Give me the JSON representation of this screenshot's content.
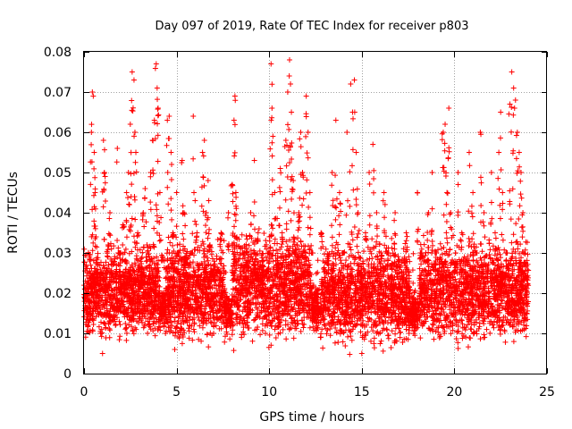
{
  "chart_data": {
    "type": "scatter",
    "title": "Day 097 of 2019, Rate Of TEC Index for receiver p803",
    "xlabel": "GPS time / hours",
    "ylabel": "ROTI / TECUs",
    "xlim": [
      0,
      25
    ],
    "ylim": [
      0,
      0.08
    ],
    "x_ticks": [
      0,
      5,
      10,
      15,
      20,
      25
    ],
    "x_tick_labels": [
      "0",
      "5",
      "10",
      "15",
      "20",
      "25"
    ],
    "y_ticks": [
      0,
      0.01,
      0.02,
      0.03,
      0.04,
      0.05,
      0.06,
      0.07,
      0.08
    ],
    "y_tick_labels": [
      "0",
      "0.01",
      "0.02",
      "0.03",
      "0.04",
      "0.05",
      "0.06",
      "0.07",
      "0.08"
    ],
    "grid": true,
    "marker": "+",
    "color": "#ff0000",
    "series": [
      {
        "name": "ROTI",
        "points": [
          [
            0.1,
            0.02
          ],
          [
            0.2,
            0.012
          ],
          [
            0.3,
            0.028
          ],
          [
            0.35,
            0.015
          ],
          [
            0.4,
            0.06
          ],
          [
            0.45,
            0.07
          ],
          [
            0.5,
            0.069
          ],
          [
            0.55,
            0.055
          ],
          [
            0.6,
            0.045
          ],
          [
            0.65,
            0.034
          ],
          [
            0.7,
            0.025
          ],
          [
            0.8,
            0.018
          ],
          [
            0.9,
            0.01
          ],
          [
            1.0,
            0.005
          ],
          [
            1.05,
            0.058
          ],
          [
            1.1,
            0.05
          ],
          [
            1.2,
            0.022
          ],
          [
            1.3,
            0.032
          ],
          [
            1.4,
            0.04
          ],
          [
            1.5,
            0.027
          ],
          [
            1.6,
            0.016
          ],
          [
            1.7,
            0.012
          ],
          [
            1.8,
            0.056
          ],
          [
            1.9,
            0.03
          ],
          [
            2.0,
            0.02
          ],
          [
            2.1,
            0.037
          ],
          [
            2.2,
            0.015
          ],
          [
            2.3,
            0.045
          ],
          [
            2.4,
            0.05
          ],
          [
            2.5,
            0.062
          ],
          [
            2.6,
            0.075
          ],
          [
            2.7,
            0.073
          ],
          [
            2.75,
            0.06
          ],
          [
            2.8,
            0.055
          ],
          [
            2.9,
            0.035
          ],
          [
            3.0,
            0.015
          ],
          [
            3.1,
            0.022
          ],
          [
            3.2,
            0.04
          ],
          [
            3.3,
            0.046
          ],
          [
            3.4,
            0.032
          ],
          [
            3.5,
            0.012
          ],
          [
            3.6,
            0.05
          ],
          [
            3.7,
            0.058
          ],
          [
            3.8,
            0.063
          ],
          [
            3.9,
            0.077
          ],
          [
            3.95,
            0.071
          ],
          [
            4.0,
            0.066
          ],
          [
            4.1,
            0.045
          ],
          [
            4.2,
            0.028
          ],
          [
            4.3,
            0.015
          ],
          [
            4.4,
            0.01
          ],
          [
            4.5,
            0.063
          ],
          [
            4.6,
            0.064
          ],
          [
            4.7,
            0.055
          ],
          [
            4.8,
            0.035
          ],
          [
            4.9,
            0.006
          ],
          [
            5.0,
            0.045
          ],
          [
            5.1,
            0.03
          ],
          [
            5.2,
            0.02
          ],
          [
            5.3,
            0.053
          ],
          [
            5.4,
            0.04
          ],
          [
            5.5,
            0.025
          ],
          [
            5.6,
            0.018
          ],
          [
            5.7,
            0.012
          ],
          [
            5.8,
            0.03
          ],
          [
            5.9,
            0.064
          ],
          [
            6.0,
            0.043
          ],
          [
            6.1,
            0.035
          ],
          [
            6.2,
            0.022
          ],
          [
            6.3,
            0.015
          ],
          [
            6.4,
            0.055
          ],
          [
            6.5,
            0.058
          ],
          [
            6.6,
            0.04
          ],
          [
            6.7,
            0.048
          ],
          [
            6.8,
            0.032
          ],
          [
            6.9,
            0.018
          ],
          [
            7.0,
            0.01
          ],
          [
            7.2,
            0.025
          ],
          [
            7.4,
            0.035
          ],
          [
            7.6,
            0.015
          ],
          [
            7.8,
            0.04
          ],
          [
            8.0,
            0.047
          ],
          [
            8.1,
            0.063
          ],
          [
            8.15,
            0.069
          ],
          [
            8.2,
            0.045
          ],
          [
            8.4,
            0.022
          ],
          [
            8.6,
            0.03
          ],
          [
            8.8,
            0.012
          ],
          [
            9.0,
            0.04
          ],
          [
            9.2,
            0.053
          ],
          [
            9.4,
            0.035
          ],
          [
            9.6,
            0.02
          ],
          [
            9.8,
            0.01
          ],
          [
            10.0,
            0.03
          ],
          [
            10.1,
            0.077
          ],
          [
            10.15,
            0.066
          ],
          [
            10.2,
            0.059
          ],
          [
            10.3,
            0.045
          ],
          [
            10.4,
            0.025
          ],
          [
            10.5,
            0.015
          ],
          [
            10.6,
            0.051
          ],
          [
            10.7,
            0.035
          ],
          [
            10.8,
            0.02
          ],
          [
            10.9,
            0.058
          ],
          [
            11.0,
            0.07
          ],
          [
            11.1,
            0.078
          ],
          [
            11.15,
            0.072
          ],
          [
            11.2,
            0.065
          ],
          [
            11.3,
            0.048
          ],
          [
            11.4,
            0.03
          ],
          [
            11.5,
            0.015
          ],
          [
            11.6,
            0.04
          ],
          [
            11.7,
            0.06
          ],
          [
            11.8,
            0.05
          ],
          [
            11.9,
            0.025
          ],
          [
            12.0,
            0.069
          ],
          [
            12.1,
            0.06
          ],
          [
            12.2,
            0.045
          ],
          [
            12.3,
            0.03
          ],
          [
            12.4,
            0.015
          ],
          [
            12.6,
            0.02
          ],
          [
            12.8,
            0.035
          ],
          [
            13.0,
            0.012
          ],
          [
            13.2,
            0.028
          ],
          [
            13.4,
            0.05
          ],
          [
            13.6,
            0.063
          ],
          [
            13.8,
            0.045
          ],
          [
            14.0,
            0.03
          ],
          [
            14.2,
            0.06
          ],
          [
            14.4,
            0.072
          ],
          [
            14.5,
            0.065
          ],
          [
            14.6,
            0.073
          ],
          [
            14.7,
            0.055
          ],
          [
            14.8,
            0.04
          ],
          [
            14.9,
            0.025
          ],
          [
            15.0,
            0.005
          ],
          [
            15.2,
            0.035
          ],
          [
            15.4,
            0.05
          ],
          [
            15.6,
            0.057
          ],
          [
            15.8,
            0.04
          ],
          [
            16.0,
            0.022
          ],
          [
            16.2,
            0.045
          ],
          [
            16.4,
            0.03
          ],
          [
            16.6,
            0.015
          ],
          [
            16.8,
            0.04
          ],
          [
            17.0,
            0.025
          ],
          [
            17.2,
            0.012
          ],
          [
            17.4,
            0.035
          ],
          [
            17.6,
            0.02
          ],
          [
            17.8,
            0.01
          ],
          [
            18.0,
            0.045
          ],
          [
            18.2,
            0.03
          ],
          [
            18.4,
            0.02
          ],
          [
            18.6,
            0.04
          ],
          [
            18.8,
            0.05
          ],
          [
            19.0,
            0.03
          ],
          [
            19.2,
            0.015
          ],
          [
            19.4,
            0.06
          ],
          [
            19.5,
            0.062
          ],
          [
            19.6,
            0.045
          ],
          [
            19.7,
            0.066
          ],
          [
            19.8,
            0.04
          ],
          [
            20.0,
            0.025
          ],
          [
            20.2,
            0.05
          ],
          [
            20.4,
            0.035
          ],
          [
            20.6,
            0.02
          ],
          [
            20.8,
            0.055
          ],
          [
            21.0,
            0.045
          ],
          [
            21.2,
            0.03
          ],
          [
            21.4,
            0.06
          ],
          [
            21.6,
            0.04
          ],
          [
            21.8,
            0.025
          ],
          [
            22.0,
            0.05
          ],
          [
            22.2,
            0.035
          ],
          [
            22.4,
            0.055
          ],
          [
            22.5,
            0.065
          ],
          [
            22.6,
            0.045
          ],
          [
            22.8,
            0.03
          ],
          [
            23.0,
            0.067
          ],
          [
            23.1,
            0.075
          ],
          [
            23.2,
            0.071
          ],
          [
            23.3,
            0.068
          ],
          [
            23.4,
            0.06
          ],
          [
            23.5,
            0.055
          ],
          [
            23.6,
            0.05
          ],
          [
            23.7,
            0.04
          ],
          [
            23.8,
            0.025
          ],
          [
            23.9,
            0.015
          ]
        ],
        "band": {
          "description": "dense cloud of points between roughly 0.005 and 0.035 across the whole day, with sparse gaps near 4.0, 7.5 and 12.5 hours",
          "segments": [
            [
              0.0,
              4.1,
              0.006,
              0.034
            ],
            [
              4.1,
              4.4,
              0.01,
              0.022
            ],
            [
              4.4,
              7.6,
              0.005,
              0.036
            ],
            [
              7.6,
              8.0,
              0.008,
              0.022
            ],
            [
              8.0,
              12.3,
              0.004,
              0.04
            ],
            [
              12.3,
              12.8,
              0.008,
              0.024
            ],
            [
              12.8,
              17.6,
              0.004,
              0.036
            ],
            [
              17.6,
              18.1,
              0.008,
              0.022
            ],
            [
              18.1,
              24.0,
              0.005,
              0.036
            ]
          ]
        }
      }
    ]
  }
}
